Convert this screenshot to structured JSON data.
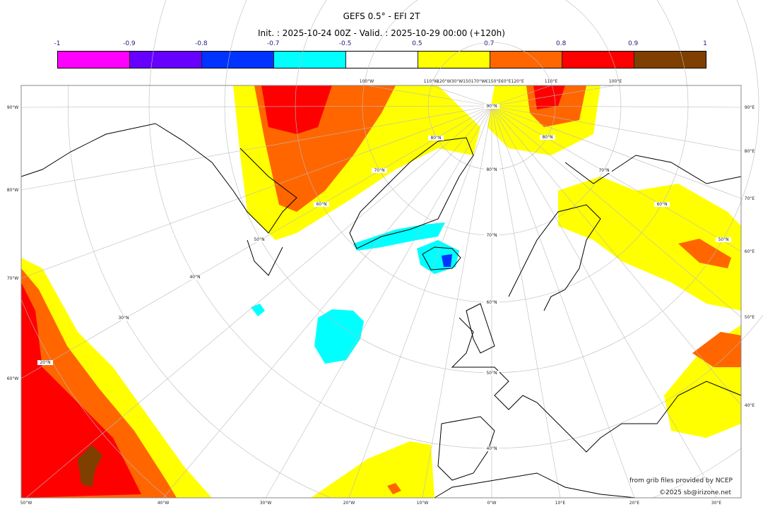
{
  "title": "GEFS 0.5° - EFI 2T",
  "subtitle": "Init. : 2025-10-24 00Z - Valid. : 2025-10-29 00:00 (+120h)",
  "colorbar": {
    "ticks": [
      "-1",
      "-0.9",
      "-0.8",
      "-0.7",
      "-0.5",
      "0.5",
      "0.7",
      "0.8",
      "0.9",
      "1"
    ],
    "colors": [
      "#ff00ff",
      "#6600ff",
      "#0033ff",
      "#00ffff",
      "#ffffff",
      "#ffff00",
      "#ff6600",
      "#ff0000",
      "#7f3f00"
    ]
  },
  "axes": {
    "left": [
      "90°W",
      "80°W",
      "70°W",
      "60°W"
    ],
    "right": [
      "90°E",
      "80°E",
      "70°E",
      "60°E",
      "50°E",
      "40°E"
    ],
    "bottom": [
      "50°W",
      "40°W",
      "30°W",
      "20°W",
      "10°W",
      "0°W",
      "10°E",
      "20°E",
      "30°E"
    ],
    "top": [
      "100°W",
      "110°W",
      "120°W30°W150170°W€150°E€0°E120°E",
      "110°E",
      "100°E"
    ],
    "lat_labels": [
      "90°N",
      "80°N",
      "70°N",
      "60°N",
      "50°N",
      "40°N",
      "80°N",
      "70°N",
      "60°N",
      "50°N",
      "80°N",
      "70°N",
      "60°N",
      "50°N",
      "40°N",
      "30°N",
      "20°N"
    ]
  },
  "credits": {
    "source": "from grib files provided by NCEP",
    "copyright": "©2025 sb@irizone.net"
  }
}
